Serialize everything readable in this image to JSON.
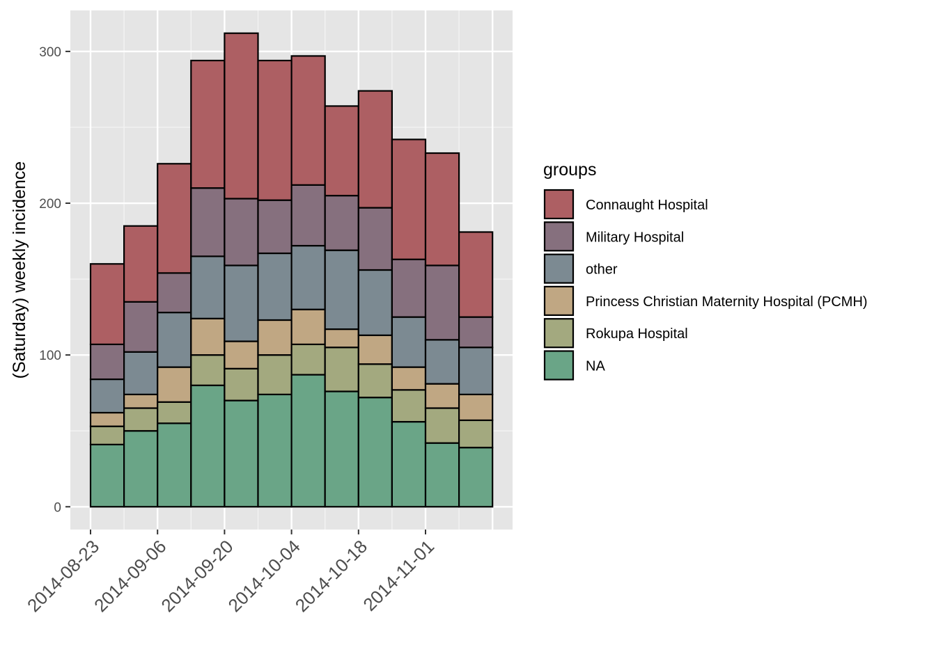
{
  "chart_data": {
    "type": "bar",
    "stacked": true,
    "ylabel": "(Saturday) weekly incidence",
    "xlabel": "",
    "ylim": [
      -15,
      327
    ],
    "yticks": [
      0,
      100,
      200,
      300
    ],
    "x_tick_labels": [
      "2014-08-23",
      "2014-09-06",
      "2014-09-20",
      "2014-10-04",
      "2014-10-18",
      "2014-11-01"
    ],
    "categories": [
      "2014-08-23",
      "2014-08-30",
      "2014-09-06",
      "2014-09-13",
      "2014-09-20",
      "2014-09-27",
      "2014-10-04",
      "2014-10-11",
      "2014-10-18",
      "2014-10-25",
      "2014-11-01",
      "2014-11-08"
    ],
    "legend": {
      "title": "groups",
      "position": "right"
    },
    "grid": true,
    "series": [
      {
        "name": "NA",
        "color": "#6aa587",
        "values": [
          41,
          50,
          55,
          80,
          70,
          74,
          87,
          76,
          72,
          56,
          42,
          39
        ]
      },
      {
        "name": "Rokupa Hospital",
        "color": "#a3a97f",
        "values": [
          12,
          15,
          14,
          20,
          21,
          26,
          20,
          29,
          22,
          21,
          23,
          18
        ]
      },
      {
        "name": "Princess Christian Maternity Hospital (PCMH)",
        "color": "#c0a783",
        "values": [
          9,
          9,
          23,
          24,
          18,
          23,
          23,
          12,
          19,
          15,
          16,
          17
        ]
      },
      {
        "name": "other",
        "color": "#7c8a92",
        "values": [
          22,
          28,
          36,
          41,
          50,
          44,
          42,
          52,
          43,
          33,
          29,
          31
        ]
      },
      {
        "name": "Military Hospital",
        "color": "#86707e",
        "values": [
          23,
          33,
          26,
          45,
          44,
          35,
          40,
          36,
          41,
          38,
          49,
          20
        ]
      },
      {
        "name": "Connaught Hospital",
        "color": "#ad5f63",
        "values": [
          53,
          50,
          72,
          84,
          109,
          92,
          85,
          59,
          77,
          79,
          74,
          56
        ]
      }
    ]
  }
}
